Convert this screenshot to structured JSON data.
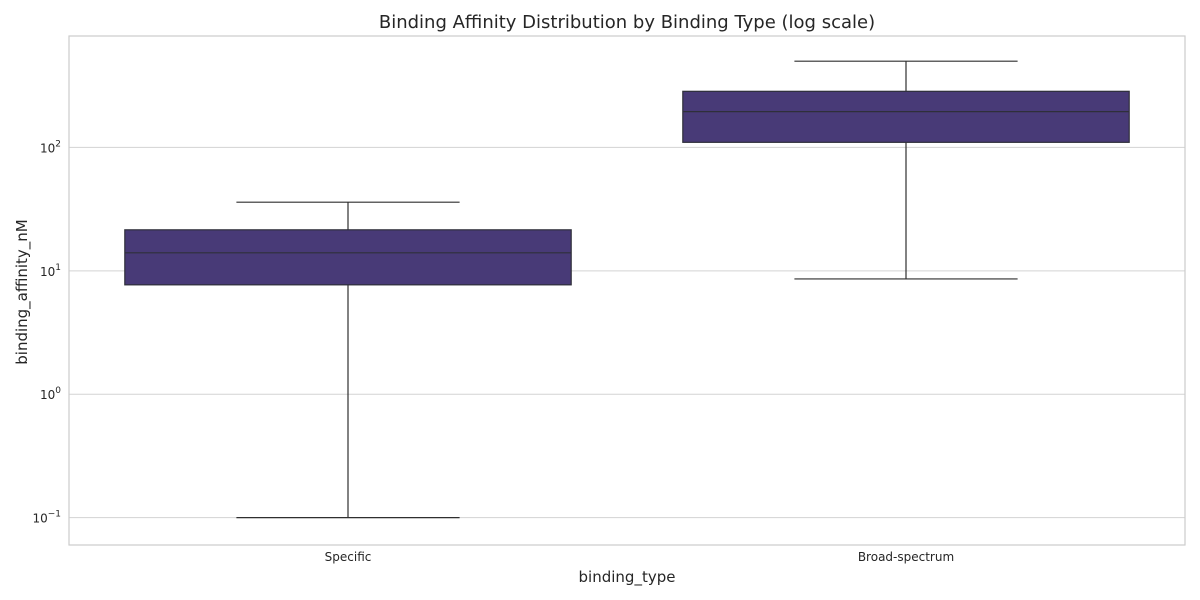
{
  "chart_data": {
    "type": "box",
    "title": "Binding Affinity Distribution by Binding Type (log scale)",
    "xlabel": "binding_type",
    "ylabel": "binding_affinity_nM",
    "yscale": "log",
    "ylim": [
      0.06,
      800
    ],
    "grid": true,
    "y_ticks": [
      {
        "value": 0.1,
        "base": "10",
        "exp": "−1"
      },
      {
        "value": 1,
        "base": "10",
        "exp": "0"
      },
      {
        "value": 10,
        "base": "10",
        "exp": "1"
      },
      {
        "value": 100,
        "base": "10",
        "exp": "2"
      }
    ],
    "categories": [
      "Specific",
      "Broad-spectrum"
    ],
    "boxes": [
      {
        "category": "Specific",
        "whisker_low": 0.1,
        "q1": 7.7,
        "median": 14,
        "q3": 21.5,
        "whisker_high": 36
      },
      {
        "category": "Broad-spectrum",
        "whisker_low": 8.6,
        "q1": 110,
        "median": 195,
        "q3": 285,
        "whisker_high": 500
      }
    ],
    "colors": {
      "box_fill": "#483a77",
      "box_edge": "#2f2f3a",
      "whisker": "#2f2f2f",
      "grid": "#d3d3d3",
      "frame": "#cccccc"
    }
  }
}
